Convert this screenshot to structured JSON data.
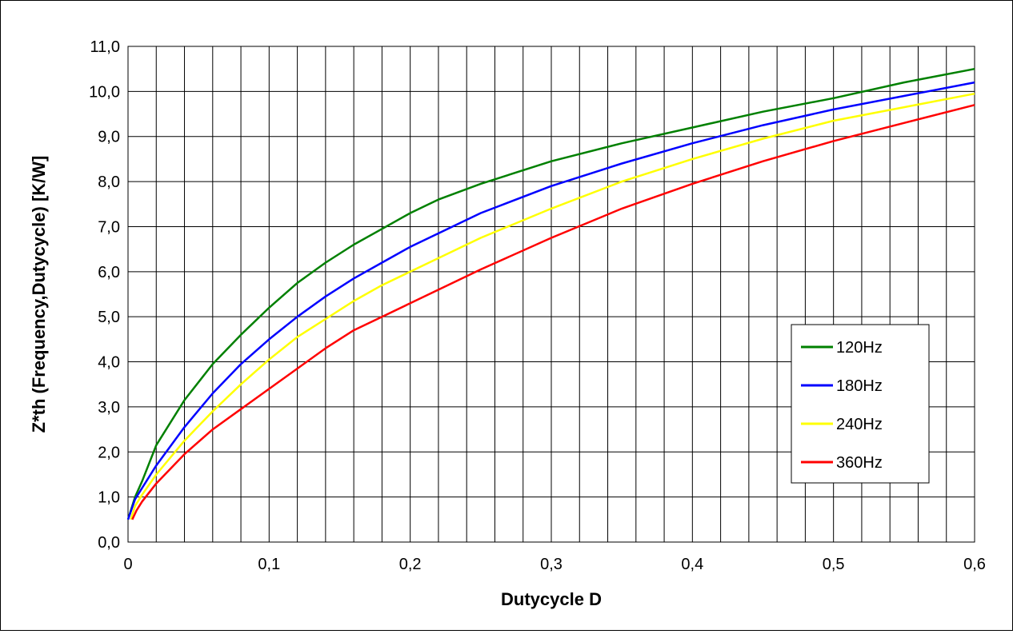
{
  "chart_data": {
    "type": "line",
    "xlabel": "Dutycycle D",
    "ylabel": "Z*th (Frequency,Dutycycle) [K/W]",
    "xlim": [
      0,
      0.6
    ],
    "ylim": [
      0,
      11
    ],
    "x_ticks": [
      "0",
      "0,1",
      "0,2",
      "0,3",
      "0,4",
      "0,5",
      "0,6"
    ],
    "y_ticks": [
      "0,0",
      "1,0",
      "2,0",
      "3,0",
      "4,0",
      "5,0",
      "6,0",
      "7,0",
      "8,0",
      "9,0",
      "10,0",
      "11,0"
    ],
    "grid": {
      "vertical_step": 0.02,
      "horizontal_step": 1.0
    },
    "legend": {
      "position": "right"
    },
    "series": [
      {
        "name": "120Hz",
        "color": "#008000",
        "x": [
          0,
          0.005,
          0.01,
          0.02,
          0.04,
          0.06,
          0.08,
          0.1,
          0.12,
          0.14,
          0.16,
          0.18,
          0.2,
          0.22,
          0.25,
          0.3,
          0.35,
          0.4,
          0.45,
          0.5,
          0.55,
          0.6
        ],
        "y": [
          0.5,
          1.0,
          1.35,
          2.15,
          3.15,
          3.95,
          4.6,
          5.2,
          5.75,
          6.2,
          6.6,
          6.95,
          7.3,
          7.6,
          7.95,
          8.45,
          8.85,
          9.2,
          9.55,
          9.85,
          10.2,
          10.5
        ]
      },
      {
        "name": "180Hz",
        "color": "#0000FF",
        "x": [
          0,
          0.005,
          0.01,
          0.02,
          0.04,
          0.06,
          0.08,
          0.1,
          0.12,
          0.14,
          0.16,
          0.18,
          0.2,
          0.22,
          0.25,
          0.3,
          0.35,
          0.4,
          0.45,
          0.5,
          0.55,
          0.6
        ],
        "y": [
          0.5,
          0.95,
          1.2,
          1.7,
          2.55,
          3.3,
          3.95,
          4.5,
          5.0,
          5.45,
          5.85,
          6.2,
          6.55,
          6.85,
          7.3,
          7.9,
          8.4,
          8.85,
          9.25,
          9.6,
          9.9,
          10.2
        ]
      },
      {
        "name": "240Hz",
        "color": "#FFFF00",
        "x": [
          0.002,
          0.005,
          0.01,
          0.02,
          0.04,
          0.06,
          0.08,
          0.1,
          0.12,
          0.14,
          0.16,
          0.18,
          0.2,
          0.22,
          0.25,
          0.3,
          0.35,
          0.4,
          0.45,
          0.5,
          0.55,
          0.6
        ],
        "y": [
          0.5,
          0.8,
          1.05,
          1.5,
          2.25,
          2.9,
          3.5,
          4.05,
          4.55,
          4.95,
          5.35,
          5.7,
          6.0,
          6.3,
          6.75,
          7.4,
          8.0,
          8.5,
          8.95,
          9.35,
          9.65,
          9.95
        ]
      },
      {
        "name": "360Hz",
        "color": "#FF0000",
        "x": [
          0.003,
          0.006,
          0.01,
          0.02,
          0.04,
          0.06,
          0.08,
          0.1,
          0.12,
          0.14,
          0.16,
          0.18,
          0.2,
          0.22,
          0.25,
          0.3,
          0.35,
          0.4,
          0.45,
          0.5,
          0.55,
          0.6
        ],
        "y": [
          0.5,
          0.7,
          0.9,
          1.3,
          1.95,
          2.5,
          2.95,
          3.4,
          3.85,
          4.3,
          4.7,
          5.0,
          5.3,
          5.6,
          6.05,
          6.75,
          7.4,
          7.95,
          8.45,
          8.9,
          9.3,
          9.7
        ]
      }
    ]
  }
}
